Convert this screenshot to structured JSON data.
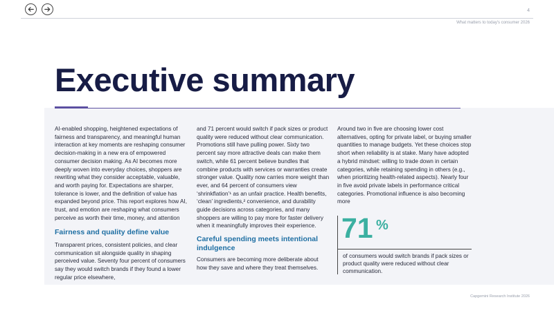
{
  "nav": {
    "prev_label": "previous",
    "next_label": "next"
  },
  "header": {
    "page_number": "4",
    "doc_title": "What matters to today's consumer 2026"
  },
  "title": "Executive summary",
  "columns": {
    "col1_text": "AI-enabled shopping, heightened expectations of fairness and transparency, and meaningful human interaction at key moments are reshaping consumer decision-making in a new era of empowered consumer decision making. As AI becomes more deeply woven into everyday choices, shoppers are rewriting what they consider acceptable, valuable, and worth paying for. Expectations are sharper, tolerance is lower, and the definition of value has expanded beyond price. This report explores how AI, trust, and emotion are reshaping what consumers perceive as worth their time, money, and attention",
    "col1_heading": "Fairness and quality define value",
    "col1_text2": "Transparent prices, consistent policies, and clear communication sit alongside quality in shaping perceived value. Seventy four percent of consumers say they would switch brands if they found a lower regular price elsewhere,",
    "col2_text": "and 71 percent would switch if pack sizes or product quality were reduced without clear communication. Promotions still have pulling power. Sixty two percent say more attractive deals can make them switch, while 61 percent believe bundles that combine products with services or warranties create stronger value. Quality now carries more weight than ever, and 64 percent of consumers view ‘shrinkflation’¹ as an unfair practice. Health benefits, ‘clean’ ingredients,² convenience, and durability guide decisions across categories, and many shoppers are willing to pay more for faster delivery when it meaningfully improves their experience.",
    "col2_heading": "Careful spending meets intentional indulgence",
    "col2_text2": "Consumers are becoming more deliberate about how they save and where they treat themselves.",
    "col3_text": "Around two in five are choosing lower cost alternatives, opting for private label, or buying smaller quantities to manage budgets. Yet these choices stop short when reliability is at stake. Many have adopted a hybrid mindset: willing to trade down in certain categories, while retaining spending in others (e.g., when prioritizing health-related aspects). Nearly four in five avoid private labels in performance critical categories. Promotional influence is also becoming more"
  },
  "stat": {
    "number": "71",
    "unit": "%",
    "caption": "of consumers would switch brands if pack sizes or product quality were reduced without clear communication."
  },
  "footer": {
    "text": "Capgemini Research Institute 2026"
  },
  "colors": {
    "title": "#171c45",
    "accent": "#5c4fa1",
    "heading": "#1f6fa3",
    "stat": "#3bb0a1",
    "panel": "#f3f4f8"
  },
  "icons": {
    "prev": "arrow-left-icon",
    "next": "arrow-right-icon"
  }
}
